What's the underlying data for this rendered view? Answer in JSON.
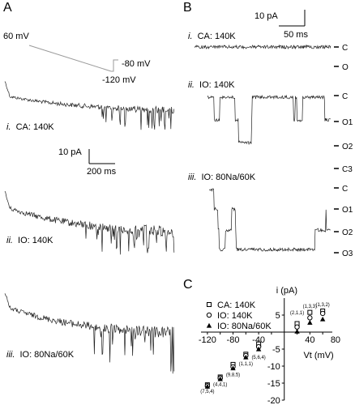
{
  "panel_a": {
    "letter": "A",
    "protocol": {
      "hold_label": "60 mV",
      "ramp_end_label": "-120 mV",
      "step_label": "-80 mV"
    },
    "scale_bar": {
      "y_label": "10 pA",
      "x_label": "200 ms"
    },
    "traces": [
      {
        "numeral": "i.",
        "label": "CA: 140K"
      },
      {
        "numeral": "ii.",
        "label": "IO: 140K"
      },
      {
        "numeral": "iii.",
        "label": "IO: 80Na/60K"
      }
    ]
  },
  "panel_b": {
    "letter": "B",
    "scale_bar": {
      "y_label": "10 pA",
      "x_label": "50 ms"
    },
    "traces": [
      {
        "numeral": "i.",
        "label": "CA: 140K",
        "levels": [
          "C",
          "O"
        ]
      },
      {
        "numeral": "ii.",
        "label": "IO: 140K",
        "levels": [
          "C",
          "O1",
          "O2",
          "C3"
        ]
      },
      {
        "numeral": "iii.",
        "label": "IO: 80Na/60K",
        "levels": [
          "C",
          "O1",
          "O2",
          "O3"
        ]
      }
    ]
  },
  "panel_c": {
    "letter": "C"
  },
  "chart_data": {
    "type": "scatter",
    "xlabel": "Vt (mV)",
    "ylabel": "i (pA)",
    "xlim": [
      -130,
      75
    ],
    "ylim": [
      -20,
      10
    ],
    "x_ticks": [
      "-120",
      "-80",
      "-40",
      "40",
      "80"
    ],
    "x_tick_values": [
      -120,
      -80,
      -40,
      40,
      80
    ],
    "y_ticks": [
      "5",
      "-5",
      "-10",
      "-15",
      "-20"
    ],
    "y_tick_values": [
      5,
      -5,
      -10,
      -15,
      -20
    ],
    "legend_position": "top-left",
    "series": [
      {
        "name": "CA: 140K",
        "marker": "open-square",
        "x": [
          -120,
          -100,
          -80,
          -60,
          -40,
          20,
          40,
          60
        ],
        "y": [
          -15.5,
          -13.2,
          -9.5,
          -6.5,
          -3.5,
          2.5,
          5.8,
          6.2
        ]
      },
      {
        "name": "IO: 140K",
        "marker": "open-circle",
        "x": [
          -120,
          -100,
          -80,
          -60,
          -40,
          20,
          40,
          60
        ],
        "y": [
          -15.8,
          -13.5,
          -10.2,
          -6.9,
          -4.3,
          1.5,
          4.2,
          5.5
        ]
      },
      {
        "name": "IO: 80Na/60K",
        "marker": "filled-triangle",
        "x": [
          -120,
          -100,
          -80,
          -60,
          -40,
          20,
          40,
          60
        ],
        "y": [
          -16.0,
          -13.8,
          -10.6,
          -7.4,
          -5.0,
          0.2,
          2.8,
          3.8
        ]
      }
    ],
    "annotations": [
      {
        "text": "(2,1,1)",
        "x": 20,
        "y": 5.2
      },
      {
        "text": "(1,3,3)",
        "x": 40,
        "y": 7.2
      },
      {
        "text": "(1,3,2)",
        "x": 60,
        "y": 7.6
      },
      {
        "text": "(5,6,4)",
        "x": -40,
        "y": -7.8
      },
      {
        "text": "(1,1,1)",
        "x": -60,
        "y": -9.8
      },
      {
        "text": "(9,8,5)",
        "x": -80,
        "y": -13.0
      },
      {
        "text": "(4,4,1)",
        "x": -100,
        "y": -15.8
      },
      {
        "text": "(7,5,4)",
        "x": -120,
        "y": -17.9
      }
    ]
  }
}
